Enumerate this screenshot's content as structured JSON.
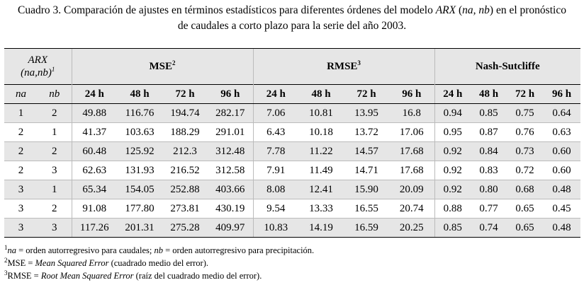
{
  "caption": {
    "part1": "Cuadro 3. Comparación de ajustes en términos estadísticos para diferentes órdenes del modelo ",
    "model": "ARX",
    "part2": " (",
    "params": "na, nb",
    "part3": ") en el pronóstico",
    "line2": "de caudales a corto plazo para la serie del año 2003."
  },
  "table": {
    "arx_label": "ARX",
    "arx_params": "(na,nb)",
    "arx_sup": "1",
    "groups": [
      {
        "label": "MSE",
        "sup": "2"
      },
      {
        "label": "RMSE",
        "sup": "3"
      },
      {
        "label": "Nash-Sutcliffe",
        "sup": ""
      }
    ],
    "col_na": "na",
    "col_nb": "nb",
    "horizons": [
      "24 h",
      "48 h",
      "72 h",
      "96 h",
      "24 h",
      "48 h",
      "72 h",
      "96 h",
      "24 h",
      "48 h",
      "72 h",
      "96 h"
    ],
    "rows": [
      [
        "1",
        "2",
        "49.88",
        "116.76",
        "194.74",
        "282.17",
        "7.06",
        "10.81",
        "13.95",
        "16.8",
        "0.94",
        "0.85",
        "0.75",
        "0.64"
      ],
      [
        "2",
        "1",
        "41.37",
        "103.63",
        "188.29",
        "291.01",
        "6.43",
        "10.18",
        "13.72",
        "17.06",
        "0.95",
        "0.87",
        "0.76",
        "0.63"
      ],
      [
        "2",
        "2",
        "60.48",
        "125.92",
        "212.3",
        "312.48",
        "7.78",
        "11.22",
        "14.57",
        "17.68",
        "0.92",
        "0.84",
        "0.73",
        "0.60"
      ],
      [
        "2",
        "3",
        "62.63",
        "131.93",
        "216.52",
        "312.58",
        "7.91",
        "11.49",
        "14.71",
        "17.68",
        "0.92",
        "0.83",
        "0.72",
        "0.60"
      ],
      [
        "3",
        "1",
        "65.34",
        "154.05",
        "252.88",
        "403.66",
        "8.08",
        "12.41",
        "15.90",
        "20.09",
        "0.92",
        "0.80",
        "0.68",
        "0.48"
      ],
      [
        "3",
        "2",
        "91.08",
        "177.80",
        "273.81",
        "430.19",
        "9.54",
        "13.33",
        "16.55",
        "20.74",
        "0.88",
        "0.77",
        "0.65",
        "0.45"
      ],
      [
        "3",
        "3",
        "117.26",
        "201.31",
        "275.28",
        "409.97",
        "10.83",
        "14.19",
        "16.59",
        "20.25",
        "0.85",
        "0.74",
        "0.65",
        "0.48"
      ]
    ]
  },
  "notes": [
    {
      "sup": "1",
      "a": "na",
      "b": " = orden autorregresivo para caudales; ",
      "c": "nb",
      "d": " = orden autorregresivo para precipitación."
    },
    {
      "sup": "2",
      "a": "MSE = ",
      "b": "Mean Squared Error",
      "c": " (cuadrado medio del error)."
    },
    {
      "sup": "3",
      "a": "RMSE = ",
      "b": "Root Mean Squared Error",
      "c": " (raíz del cuadrado medio del error)."
    }
  ]
}
